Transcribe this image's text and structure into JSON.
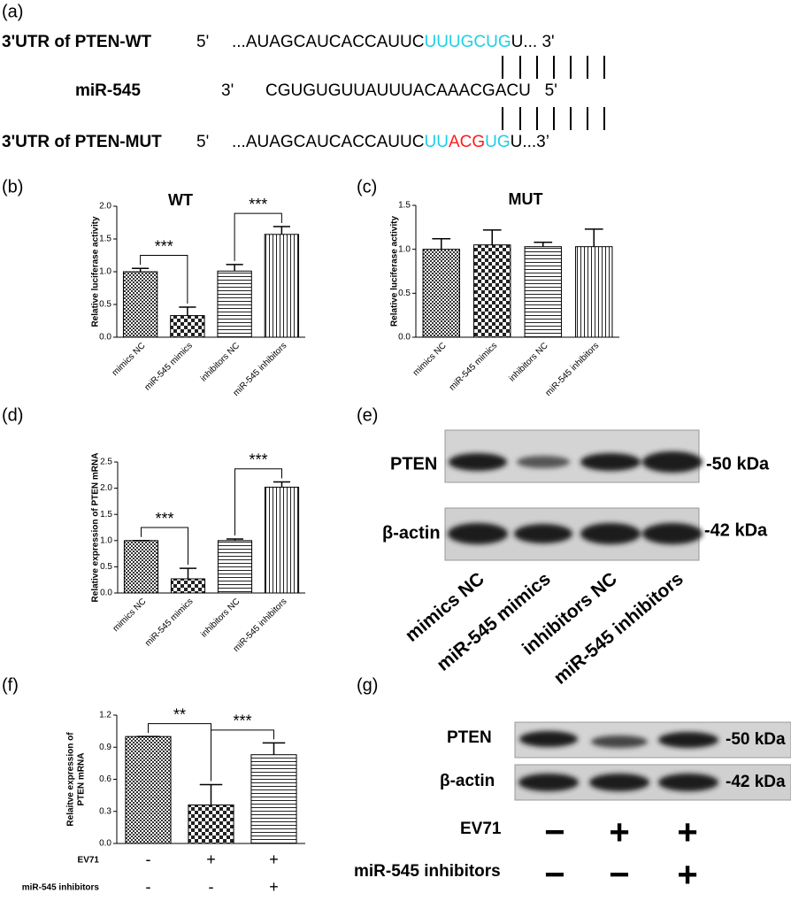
{
  "panel_labels": [
    "(a)",
    "(b)",
    "(c)",
    "(d)",
    "(e)",
    "(f)",
    "(g)"
  ],
  "sequences": [
    {
      "label": "3'UTR of PTEN-WT",
      "end": "5'",
      "segments": [
        {
          "text": "...AUAGCAUCACCAUUC",
          "color": "#000000"
        },
        {
          "text": "UUUGCUG",
          "color": "#1ccfe8"
        },
        {
          "text": "U... 3'",
          "color": "#000000"
        }
      ]
    },
    {
      "label": "miR-545",
      "end": "3'",
      "segments": [
        {
          "text": "CGUGUGUUAUUUACAAACGACU",
          "color": "#000000"
        },
        {
          "text": "   5'",
          "color": "#000000"
        }
      ]
    },
    {
      "label": "3'UTR of PTEN-MUT",
      "end": "5'",
      "segments": [
        {
          "text": "...AUAGCAUCACCAUUC",
          "color": "#000000"
        },
        {
          "text": "UU",
          "color": "#1ccfe8"
        },
        {
          "text": "ACG",
          "color": "#ff1a1a"
        },
        {
          "text": "UG",
          "color": "#1ccfe8"
        },
        {
          "text": "U...3’",
          "color": "#000000"
        }
      ]
    }
  ],
  "chart_data": [
    {
      "type": "bar",
      "title": "WT",
      "ylabel": "Relative luciferase activity",
      "categories": [
        "mimics NC",
        "miR-545 mimics",
        "inhibitors NC",
        "miR-545 inhibitors"
      ],
      "values": [
        1.0,
        0.33,
        1.01,
        1.57
      ],
      "errors": [
        0.05,
        0.13,
        0.1,
        0.12
      ],
      "patterns": [
        "crosshatch",
        "checker",
        "hlines",
        "vlines"
      ],
      "ylim": [
        0,
        2
      ],
      "yticks": [
        {
          "value": 0,
          "label": "0.0"
        },
        0.5,
        {
          "value": 1,
          "label": "1.0"
        },
        1.5,
        {
          "value": 2,
          "label": "2.0"
        }
      ],
      "annotations": [
        {
          "text": "***",
          "from": 0,
          "to": 1
        },
        {
          "text": "***",
          "from": 2,
          "to": 3
        }
      ]
    },
    {
      "type": "bar",
      "title": "MUT",
      "ylabel": "Relative luciferase activity",
      "categories": [
        "mimics NC",
        "miR-545 mimics",
        "inhibitors NC",
        "miR-545 inhibitors"
      ],
      "values": [
        1.0,
        1.05,
        1.03,
        1.03
      ],
      "errors": [
        0.12,
        0.17,
        0.05,
        0.2
      ],
      "patterns": [
        "crosshatch",
        "checker",
        "hlines",
        "vlines"
      ],
      "ylim": [
        0,
        1.5
      ],
      "yticks": [
        {
          "value": 0,
          "label": "0.0"
        },
        0.5,
        {
          "value": 1,
          "label": "1.0"
        },
        1.5
      ]
    },
    {
      "type": "bar",
      "ylabel": "Relative expression of PTEN mRNA",
      "categories": [
        "mimics NC",
        "miR-545 mimics",
        "inhibitors NC",
        "miR-545 inhibitors"
      ],
      "values": [
        1.0,
        0.27,
        1.0,
        2.02
      ],
      "errors": [
        0,
        0.2,
        0.03,
        0.1
      ],
      "patterns": [
        "crosshatch",
        "checker",
        "hlines",
        "vlines"
      ],
      "ylim": [
        0,
        2.5
      ],
      "yticks": [
        {
          "value": 0,
          "label": "0.0"
        },
        0.5,
        {
          "value": 1,
          "label": "1.0"
        },
        1.5,
        {
          "value": 2,
          "label": "2.0"
        },
        2.5
      ],
      "annotations": [
        {
          "text": "***",
          "from": 0,
          "to": 1
        },
        {
          "text": "***",
          "from": 2,
          "to": 3
        }
      ]
    },
    {
      "type": "bar",
      "ylabel": [
        "Relaitve expression of",
        "PTEN mRNA"
      ],
      "values": [
        1.0,
        0.36,
        0.83
      ],
      "errors": [
        0,
        0.19,
        0.11
      ],
      "patterns": [
        "crosshatch",
        "checker",
        "hlines"
      ],
      "ylim": [
        0,
        1.2
      ],
      "yticks": [
        {
          "value": 0,
          "label": "0.0"
        },
        0.3,
        0.6,
        0.9,
        1.2
      ],
      "annotations": [
        {
          "text": "**",
          "from": 0,
          "to": 1
        },
        {
          "text": "***",
          "from": 1,
          "to": 2
        }
      ],
      "rows": [
        {
          "label": "EV71",
          "signs": [
            "-",
            "+",
            "+"
          ]
        },
        {
          "label": "miR-545 inhibitors",
          "signs": [
            "-",
            "-",
            "+"
          ]
        }
      ]
    }
  ],
  "blot_e": {
    "proteins": [
      "PTEN",
      "β-actin"
    ],
    "sizes": [
      "-50 kDa",
      "-42 kDa"
    ],
    "lanes": [
      "mimics NC",
      "miR-545 mimics",
      "inhibitors NC",
      "miR-545 inhibitors"
    ]
  },
  "blot_g": {
    "proteins": [
      "PTEN",
      "β-actin"
    ],
    "sizes": [
      "-50 kDa",
      "-42 kDa"
    ],
    "rows": [
      {
        "label": "EV71",
        "signs": [
          "−",
          "+",
          "+"
        ]
      },
      {
        "label": "miR-545 inhibitors",
        "signs": [
          "−",
          "−",
          "+"
        ]
      }
    ]
  }
}
